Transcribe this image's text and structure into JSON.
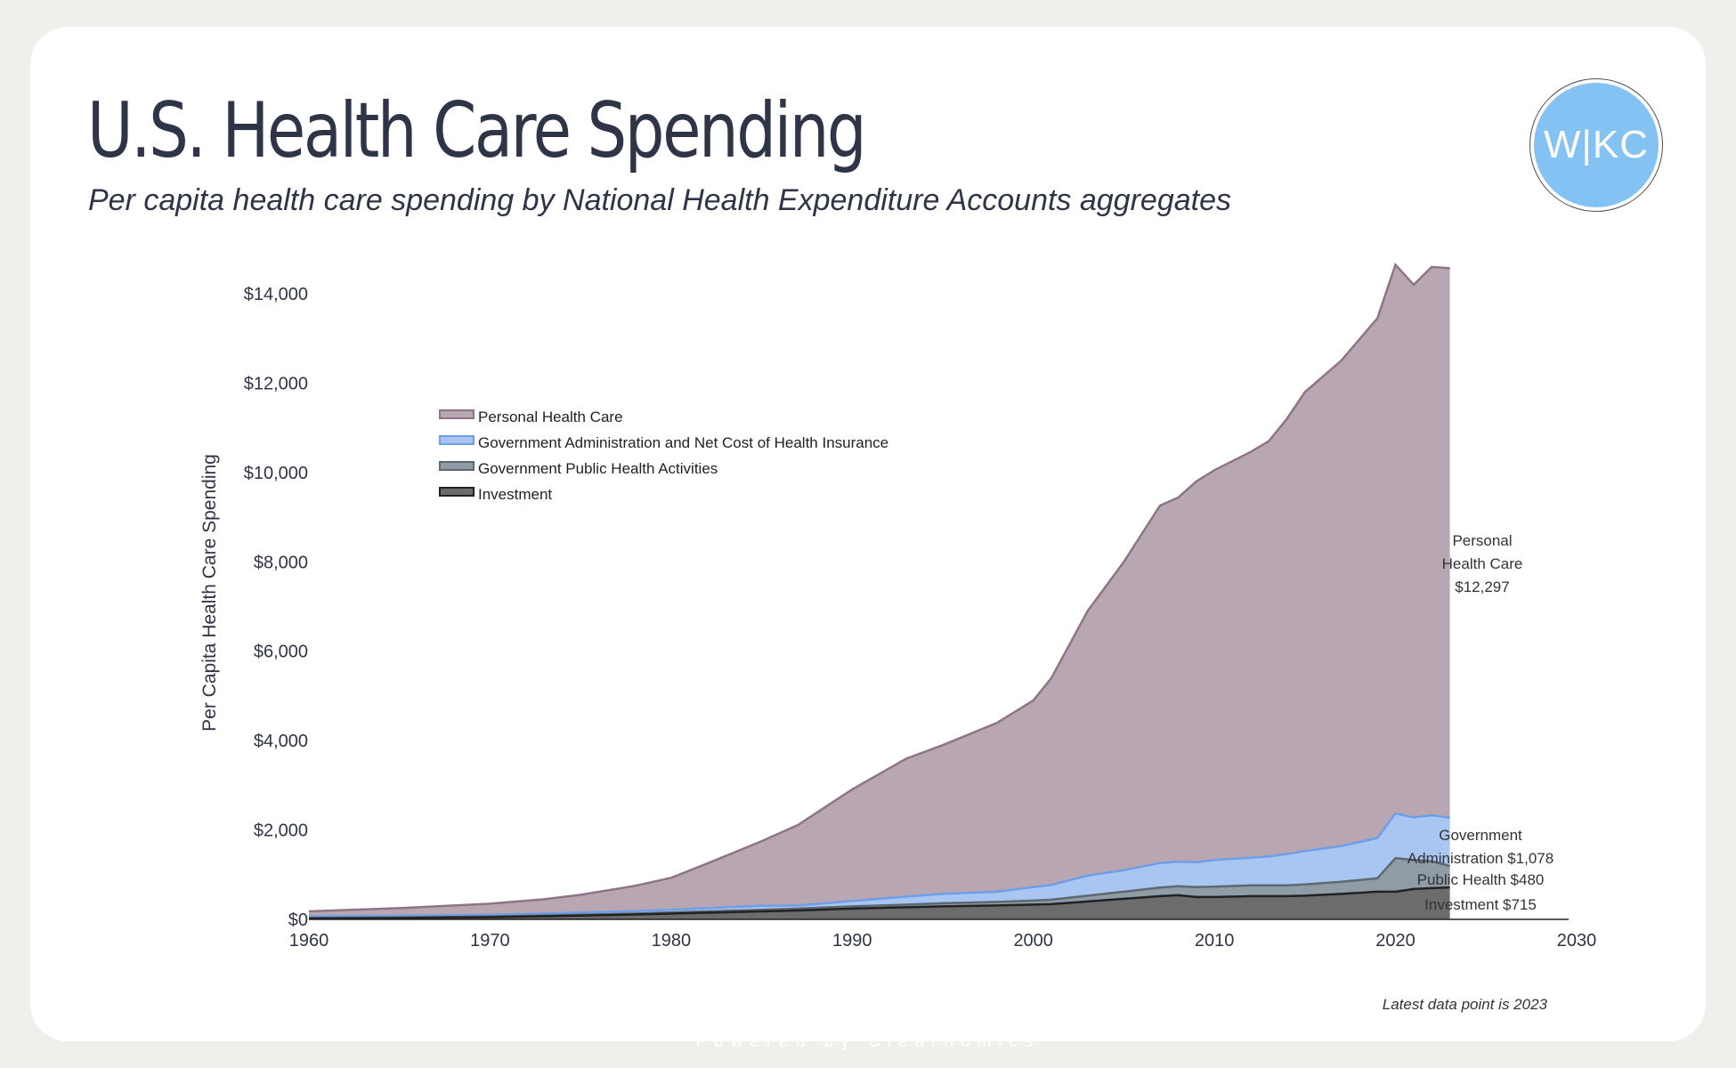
{
  "page": {
    "title": "U.S. Health Care Spending",
    "subtitle": "Per capita health care spending by National Health Expenditure Accounts aggregates",
    "logo_text": "W|KC",
    "footer": "Powered by Clearnomics"
  },
  "colors": {
    "personal": "#b8a7b2",
    "personal_line": "#8e7584",
    "govadmin": "#a9c6f3",
    "govadmin_line": "#6f9ee6",
    "publichealth": "#8f9ba5",
    "publichealth_line": "#5d6870",
    "investment": "#6c6c6c",
    "investment_line": "#222222",
    "text": "#2f3546",
    "axis": "#222222",
    "logo": "#84c2f4"
  },
  "chart_data": {
    "type": "area",
    "stacked": true,
    "title": "U.S. Health Care Spending",
    "ylabel": "Per Capita Health Care Spending",
    "xlabel": "",
    "xlim": [
      1960,
      2033
    ],
    "ylim": [
      0,
      14600
    ],
    "x_ticks": [
      1960,
      1970,
      1980,
      1990,
      2000,
      2010,
      2020,
      2030
    ],
    "x_tick_labels": [
      "1960",
      "1970",
      "1980",
      "1990",
      "2000",
      "2010",
      "2020",
      "2030"
    ],
    "y_ticks": [
      0,
      2000,
      4000,
      6000,
      8000,
      10000,
      12000,
      14000
    ],
    "y_tick_labels": [
      "$0",
      "$2,000",
      "$4,000",
      "$6,000",
      "$8,000",
      "$10,000",
      "$12,000",
      "$14,000"
    ],
    "legend_position": "top-left",
    "note": "Latest data point is 2023",
    "x": [
      1960,
      1965,
      1970,
      1973,
      1975,
      1978,
      1980,
      1982,
      1985,
      1987,
      1990,
      1993,
      1995,
      1998,
      2000,
      2001,
      2003,
      2005,
      2007,
      2008,
      2009,
      2010,
      2012,
      2013,
      2014,
      2015,
      2017,
      2019,
      2020,
      2021,
      2022,
      2023
    ],
    "series": [
      {
        "name": "Investment",
        "legend": "Investment",
        "values": [
          20,
          30,
          50,
          70,
          85,
          110,
          130,
          150,
          180,
          200,
          240,
          270,
          290,
          310,
          330,
          340,
          400,
          460,
          520,
          540,
          500,
          500,
          520,
          520,
          520,
          530,
          570,
          620,
          620,
          680,
          700,
          715
        ]
      },
      {
        "name": "Government Public Health Activities",
        "legend": "Government Public Health Activities",
        "values": [
          10,
          12,
          15,
          17,
          18,
          20,
          25,
          30,
          35,
          40,
          50,
          60,
          70,
          80,
          90,
          100,
          130,
          160,
          190,
          200,
          220,
          230,
          240,
          240,
          240,
          250,
          270,
          300,
          750,
          650,
          600,
          480
        ]
      },
      {
        "name": "Government Administration and Net Cost of Health Insurance",
        "legend": "Government Administration and Net Cost of Health Insurance",
        "values": [
          40,
          40,
          40,
          45,
          50,
          55,
          60,
          70,
          90,
          70,
          120,
          180,
          210,
          230,
          300,
          330,
          450,
          480,
          550,
          550,
          560,
          600,
          620,
          650,
          700,
          750,
          800,
          900,
          1000,
          950,
          1030,
          1078
        ]
      },
      {
        "name": "Personal Health Care",
        "legend": "Personal Health Care",
        "values": [
          110,
          168,
          245,
          318,
          397,
          565,
          715,
          1000,
          1445,
          1800,
          2500,
          3090,
          3330,
          3780,
          4180,
          4630,
          5920,
          6900,
          8000,
          8150,
          8520,
          8720,
          9080,
          9290,
          9740,
          10270,
          10860,
          11630,
          12280,
          11920,
          12270,
          12297
        ]
      }
    ],
    "end_labels": {
      "personal": [
        "Personal",
        "Health Care",
        "$12,297"
      ],
      "govadmin": [
        "Government",
        "Administration $1,078"
      ],
      "publichealth": "Public Health $480",
      "investment": "Investment $715"
    }
  }
}
